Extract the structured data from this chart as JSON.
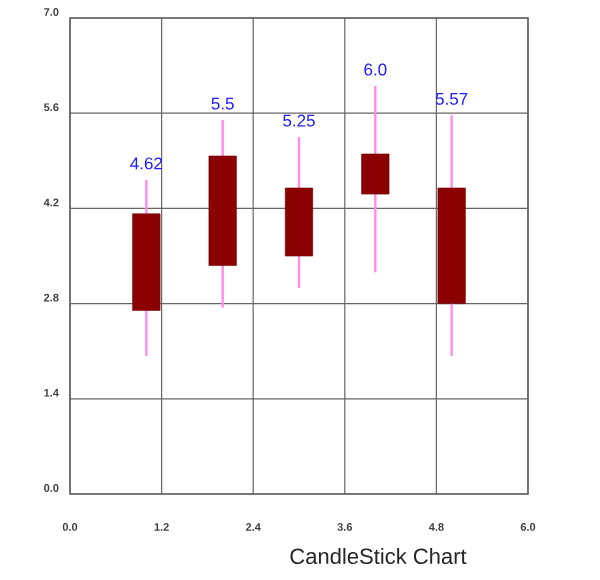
{
  "chart_data": {
    "type": "candlestick",
    "title": "CandleStick Chart",
    "x": [
      1,
      2,
      3,
      4,
      5
    ],
    "ohlc": [
      [
        4.12,
        4.62,
        2.03,
        2.7
      ],
      [
        4.97,
        5.5,
        2.74,
        3.36
      ],
      [
        4.5,
        5.25,
        3.03,
        3.5
      ],
      [
        5.0,
        6.0,
        3.26,
        4.41
      ],
      [
        4.5,
        5.57,
        2.03,
        2.8
      ]
    ],
    "color": "#8b0000",
    "value_labels": [
      "4.62",
      "5.5",
      "5.25",
      "6.0",
      "5.57"
    ],
    "xlim": [
      0,
      6
    ],
    "ylim": [
      0,
      7
    ],
    "xticks": [
      {
        "value": 0,
        "label": "0.0"
      },
      {
        "value": 1.2,
        "label": "1.2"
      },
      {
        "value": 2.4,
        "label": "2.4"
      },
      {
        "value": 3.6,
        "label": "3.6"
      },
      {
        "value": 4.8,
        "label": "4.8"
      },
      {
        "value": 6,
        "label": "6.0"
      }
    ],
    "yticks": [
      {
        "value": 0,
        "label": "0.0"
      },
      {
        "value": 1.4,
        "label": "1.4"
      },
      {
        "value": 2.8,
        "label": "2.8"
      },
      {
        "value": 4.2,
        "label": "4.2"
      },
      {
        "value": 5.6,
        "label": "5.6"
      },
      {
        "value": 7,
        "label": "7.0"
      }
    ],
    "grid": true
  }
}
